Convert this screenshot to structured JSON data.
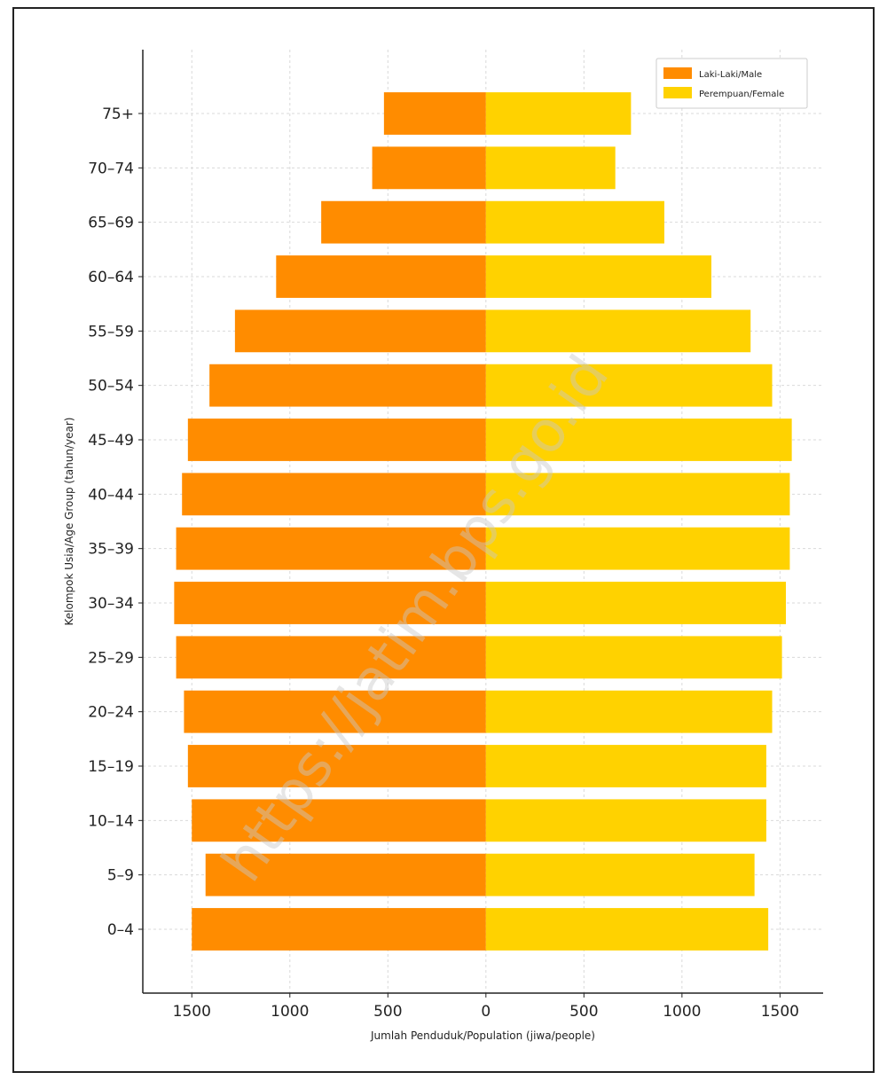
{
  "chart_data": {
    "type": "bar",
    "orientation": "horizontal",
    "categories": [
      "0-4",
      "5-9",
      "10-14",
      "15-19",
      "20-24",
      "25-29",
      "30-34",
      "35-39",
      "40-44",
      "45-49",
      "50-54",
      "55-59",
      "60-64",
      "65-69",
      "70-74",
      "75+"
    ],
    "category_labels": [
      "0–4",
      "5–9",
      "10–14",
      "15–19",
      "20–24",
      "25–29",
      "30–34",
      "35–39",
      "40–44",
      "45–49",
      "50–54",
      "55–59",
      "60–64",
      "65–69",
      "70–74",
      "75+"
    ],
    "series": [
      {
        "name": "Laki-Laki/Male",
        "values": [
          1500,
          1430,
          1500,
          1520,
          1540,
          1580,
          1590,
          1580,
          1550,
          1520,
          1410,
          1280,
          1070,
          840,
          580,
          520
        ],
        "color": "#ff8c00",
        "side": "left"
      },
      {
        "name": "Perempuan/Female",
        "values": [
          1440,
          1370,
          1430,
          1430,
          1460,
          1510,
          1530,
          1550,
          1550,
          1560,
          1460,
          1350,
          1150,
          910,
          660,
          740
        ],
        "color": "#ffd200",
        "side": "right"
      }
    ],
    "xlabel": "Jumlah Penduduk/Population (jiwa/people)",
    "ylabel": "Kelompok Usia/Age Group (tahun/year)",
    "xlim": [
      -1750,
      1720
    ],
    "xticks": [
      -1500,
      -1000,
      -500,
      0,
      500,
      1000,
      1500
    ],
    "xtick_labels": [
      "1500",
      "1000",
      "500",
      "0",
      "500",
      "1000",
      "1500"
    ],
    "grid": true,
    "legend_position": "top-right",
    "watermark": "https://jatim.bps.go.id"
  }
}
